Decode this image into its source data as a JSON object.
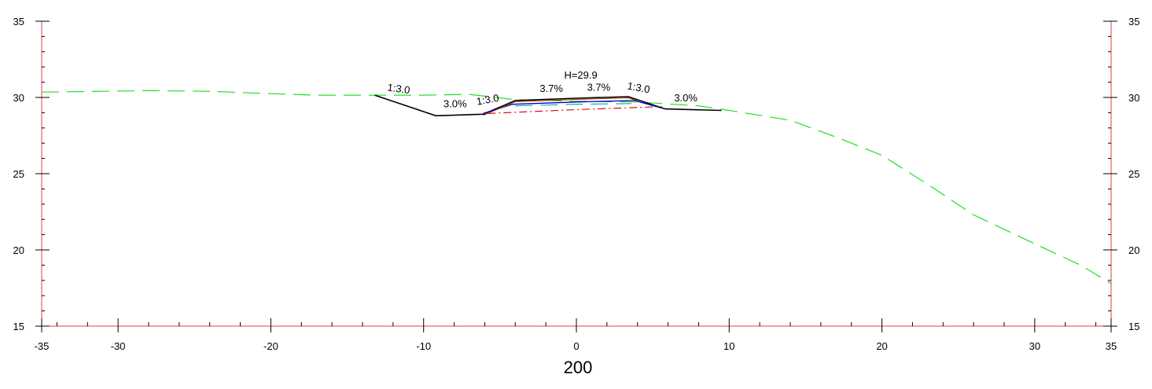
{
  "chart_data": {
    "type": "line",
    "title": "",
    "station_label": "200",
    "xlim": [
      -35,
      35
    ],
    "ylim": [
      15,
      35
    ],
    "x_ticks": [
      -35,
      -30,
      -20,
      -10,
      0,
      10,
      20,
      30,
      35
    ],
    "x_tick_labels": [
      "-35",
      "-30",
      "-20",
      "-10",
      "0",
      "10",
      "20",
      "30",
      "35"
    ],
    "y_ticks": [
      15,
      20,
      25,
      30,
      35
    ],
    "y_tick_labels": [
      "15",
      "20",
      "25",
      "30",
      "35"
    ],
    "grid": false,
    "colors": {
      "axis": "#e04040",
      "tick": "#000000",
      "ground": "#22dd22",
      "design": "#000000",
      "pavement_top": "#b03000",
      "pavement_layer": "#0000cc",
      "subgrade": "#cc0000",
      "inner_layer": "#00aaaa"
    },
    "series": [
      {
        "key": "ground",
        "style": "dashed",
        "x": [
          -35,
          -31,
          -28,
          -24,
          -20,
          -17,
          -14,
          -10,
          -7,
          -4,
          0,
          4,
          8,
          10,
          14,
          17,
          20,
          23,
          26,
          30,
          33,
          35
        ],
        "y": [
          30.35,
          30.4,
          30.45,
          30.4,
          30.25,
          30.15,
          30.15,
          30.15,
          30.2,
          29.85,
          29.75,
          29.7,
          29.45,
          29.15,
          28.5,
          27.4,
          26.2,
          24.3,
          22.3,
          20.4,
          19.0,
          17.8
        ]
      },
      {
        "key": "design",
        "style": "solid",
        "x": [
          -13.2,
          -9.2,
          -6.1,
          -4.0,
          0,
          3.4,
          4.0,
          5.8,
          9.5
        ],
        "y": [
          30.15,
          28.8,
          28.9,
          29.8,
          29.95,
          30.05,
          29.85,
          29.25,
          29.15
        ]
      },
      {
        "key": "pavement_layer",
        "style": "solid",
        "x": [
          -6.1,
          -4.2,
          0,
          3.8,
          5.6
        ],
        "y": [
          28.95,
          29.55,
          29.7,
          29.8,
          29.3
        ]
      },
      {
        "key": "subgrade",
        "style": "dashdot",
        "x": [
          -5.8,
          0,
          5.6
        ],
        "y": [
          28.95,
          29.2,
          29.4
        ]
      },
      {
        "key": "inner_layer",
        "style": "dashed",
        "x": [
          -4.0,
          0,
          3.6
        ],
        "y": [
          29.45,
          29.55,
          29.6
        ]
      }
    ],
    "annotations": [
      {
        "text": "H=29.9",
        "x": -0.8,
        "y": 31.25,
        "rotate": 0
      },
      {
        "text": "1:3.0",
        "x": -12.4,
        "y": 30.45,
        "rotate": 8
      },
      {
        "text": "3.0%",
        "x": -8.7,
        "y": 29.35,
        "rotate": 0
      },
      {
        "text": "1:3.0",
        "x": -6.5,
        "y": 29.5,
        "rotate": -10
      },
      {
        "text": "3.7%",
        "x": -2.4,
        "y": 30.35,
        "rotate": 0
      },
      {
        "text": "3.7%",
        "x": 0.7,
        "y": 30.45,
        "rotate": 0
      },
      {
        "text": "1:3.0",
        "x": 3.3,
        "y": 30.55,
        "rotate": 10
      },
      {
        "text": "3.0%",
        "x": 6.4,
        "y": 29.75,
        "rotate": 0
      }
    ]
  }
}
